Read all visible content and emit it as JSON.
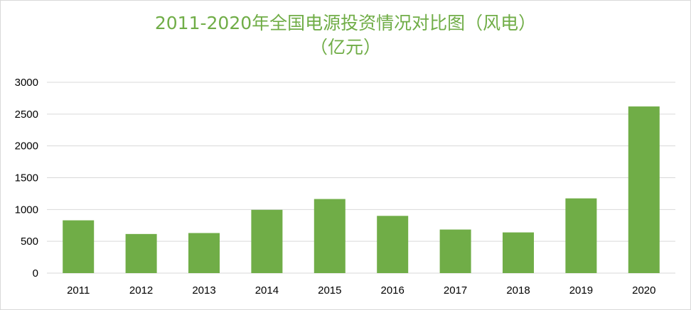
{
  "chart_data": {
    "type": "bar",
    "title": "2011-2020年全国电源投资情况对比图（风电）",
    "subtitle": "（亿元）",
    "categories": [
      "2011",
      "2012",
      "2013",
      "2014",
      "2015",
      "2016",
      "2017",
      "2018",
      "2019",
      "2020"
    ],
    "values": [
      830,
      615,
      630,
      995,
      1165,
      900,
      685,
      640,
      1175,
      2620
    ],
    "ylim": [
      0,
      3000
    ],
    "yticks": [
      "0",
      "500",
      "1000",
      "1500",
      "2000",
      "2500",
      "3000"
    ],
    "xlabel": "",
    "ylabel": "",
    "grid": true,
    "legend": "none",
    "bar_color": "#70ad47"
  }
}
